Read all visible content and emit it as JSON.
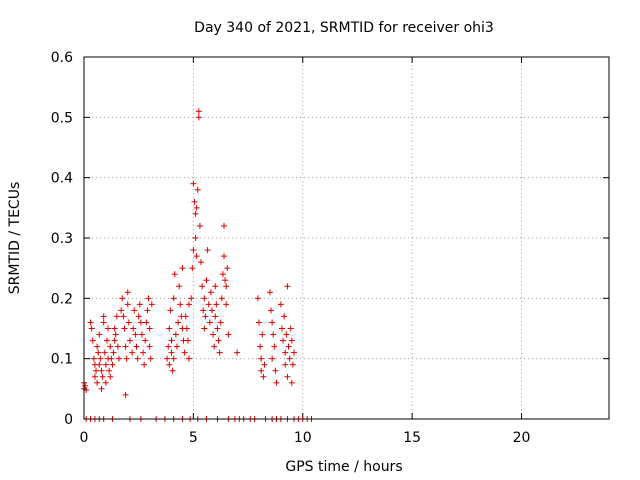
{
  "chart_data": {
    "type": "scatter",
    "title": "Day 340 of 2021, SRMTID for receiver ohi3",
    "xlabel": "GPS time / hours",
    "ylabel": "SRMTID / TECUs",
    "xlim": [
      0,
      24
    ],
    "ylim": [
      0,
      0.6
    ],
    "xticks": [
      0,
      5,
      10,
      15,
      20
    ],
    "yticks": [
      0,
      0.1,
      0.2,
      0.3,
      0.4,
      0.5,
      0.6
    ],
    "xtick_labels": [
      "0",
      "5",
      "10",
      "15",
      "20"
    ],
    "ytick_labels": [
      "0",
      "0.1",
      "0.2",
      "0.3",
      "0.4",
      "0.5",
      "0.6"
    ],
    "grid": true,
    "marker": "+",
    "series": [
      {
        "name": "SRMTID",
        "color": "#dd0000",
        "points": [
          [
            0.0,
            0.05
          ],
          [
            0.0,
            0.06
          ],
          [
            0.05,
            0.055
          ],
          [
            0.1,
            0.048
          ],
          [
            0.3,
            0.16
          ],
          [
            0.35,
            0.15
          ],
          [
            0.4,
            0.13
          ],
          [
            0.45,
            0.1
          ],
          [
            0.5,
            0.09
          ],
          [
            0.5,
            0.07
          ],
          [
            0.55,
            0.08
          ],
          [
            0.6,
            0.06
          ],
          [
            0.6,
            0.12
          ],
          [
            0.65,
            0.11
          ],
          [
            0.7,
            0.09
          ],
          [
            0.7,
            0.14
          ],
          [
            0.75,
            0.1
          ],
          [
            0.8,
            0.08
          ],
          [
            0.8,
            0.05
          ],
          [
            0.85,
            0.07
          ],
          [
            0.9,
            0.16
          ],
          [
            0.9,
            0.17
          ],
          [
            0.95,
            0.11
          ],
          [
            1.0,
            0.09
          ],
          [
            1.0,
            0.06
          ],
          [
            1.05,
            0.13
          ],
          [
            1.1,
            0.15
          ],
          [
            1.1,
            0.1
          ],
          [
            1.15,
            0.08
          ],
          [
            1.2,
            0.07
          ],
          [
            1.2,
            0.12
          ],
          [
            1.25,
            0.1
          ],
          [
            1.3,
            0.09
          ],
          [
            1.35,
            0.11
          ],
          [
            1.4,
            0.13
          ],
          [
            1.4,
            0.15
          ],
          [
            1.45,
            0.14
          ],
          [
            1.5,
            0.17
          ],
          [
            1.55,
            0.12
          ],
          [
            1.6,
            0.1
          ],
          [
            1.7,
            0.18
          ],
          [
            1.75,
            0.2
          ],
          [
            1.8,
            0.17
          ],
          [
            1.85,
            0.15
          ],
          [
            1.9,
            0.12
          ],
          [
            1.9,
            0.04
          ],
          [
            1.95,
            0.1
          ],
          [
            2.0,
            0.19
          ],
          [
            2.0,
            0.21
          ],
          [
            2.05,
            0.16
          ],
          [
            2.1,
            0.13
          ],
          [
            2.2,
            0.11
          ],
          [
            2.25,
            0.15
          ],
          [
            2.3,
            0.18
          ],
          [
            2.35,
            0.14
          ],
          [
            2.4,
            0.12
          ],
          [
            2.45,
            0.1
          ],
          [
            2.5,
            0.17
          ],
          [
            2.55,
            0.19
          ],
          [
            2.6,
            0.16
          ],
          [
            2.65,
            0.14
          ],
          [
            2.7,
            0.11
          ],
          [
            2.75,
            0.09
          ],
          [
            2.8,
            0.13
          ],
          [
            2.85,
            0.16
          ],
          [
            2.9,
            0.18
          ],
          [
            2.95,
            0.2
          ],
          [
            3.0,
            0.15
          ],
          [
            3.0,
            0.12
          ],
          [
            3.05,
            0.1
          ],
          [
            3.1,
            0.19
          ],
          [
            3.8,
            0.1
          ],
          [
            3.85,
            0.12
          ],
          [
            3.9,
            0.09
          ],
          [
            3.9,
            0.15
          ],
          [
            3.95,
            0.18
          ],
          [
            4.0,
            0.11
          ],
          [
            4.0,
            0.13
          ],
          [
            4.05,
            0.08
          ],
          [
            4.1,
            0.1
          ],
          [
            4.1,
            0.2
          ],
          [
            4.15,
            0.24
          ],
          [
            4.2,
            0.14
          ],
          [
            4.25,
            0.12
          ],
          [
            4.3,
            0.16
          ],
          [
            4.35,
            0.22
          ],
          [
            4.4,
            0.19
          ],
          [
            4.45,
            0.17
          ],
          [
            4.5,
            0.15
          ],
          [
            4.5,
            0.25
          ],
          [
            4.55,
            0.13
          ],
          [
            4.6,
            0.11
          ],
          [
            4.65,
            0.17
          ],
          [
            4.7,
            0.15
          ],
          [
            4.75,
            0.13
          ],
          [
            4.8,
            0.1
          ],
          [
            4.8,
            0.19
          ],
          [
            4.9,
            0.2
          ],
          [
            4.95,
            0.25
          ],
          [
            5.0,
            0.28
          ],
          [
            5.0,
            0.39
          ],
          [
            5.05,
            0.36
          ],
          [
            5.1,
            0.34
          ],
          [
            5.1,
            0.3
          ],
          [
            5.15,
            0.27
          ],
          [
            5.15,
            0.35
          ],
          [
            5.2,
            0.38
          ],
          [
            5.25,
            0.5
          ],
          [
            5.25,
            0.51
          ],
          [
            5.3,
            0.32
          ],
          [
            5.35,
            0.26
          ],
          [
            5.4,
            0.22
          ],
          [
            5.45,
            0.18
          ],
          [
            5.5,
            0.2
          ],
          [
            5.5,
            0.15
          ],
          [
            5.55,
            0.17
          ],
          [
            5.6,
            0.23
          ],
          [
            5.65,
            0.28
          ],
          [
            5.7,
            0.19
          ],
          [
            5.75,
            0.16
          ],
          [
            5.8,
            0.21
          ],
          [
            5.85,
            0.18
          ],
          [
            5.9,
            0.14
          ],
          [
            5.95,
            0.12
          ],
          [
            6.0,
            0.22
          ],
          [
            6.0,
            0.17
          ],
          [
            6.05,
            0.19
          ],
          [
            6.1,
            0.15
          ],
          [
            6.15,
            0.13
          ],
          [
            6.2,
            0.11
          ],
          [
            6.25,
            0.16
          ],
          [
            6.3,
            0.2
          ],
          [
            6.35,
            0.24
          ],
          [
            6.4,
            0.32
          ],
          [
            6.4,
            0.27
          ],
          [
            6.45,
            0.23
          ],
          [
            6.5,
            0.19
          ],
          [
            6.5,
            0.22
          ],
          [
            6.55,
            0.25
          ],
          [
            6.6,
            0.14
          ],
          [
            7.0,
            0.11
          ],
          [
            7.95,
            0.2
          ],
          [
            8.0,
            0.16
          ],
          [
            8.05,
            0.12
          ],
          [
            8.1,
            0.1
          ],
          [
            8.1,
            0.08
          ],
          [
            8.15,
            0.14
          ],
          [
            8.2,
            0.07
          ],
          [
            8.25,
            0.09
          ],
          [
            8.5,
            0.21
          ],
          [
            8.55,
            0.18
          ],
          [
            8.6,
            0.16
          ],
          [
            8.6,
            0.1
          ],
          [
            8.65,
            0.14
          ],
          [
            8.7,
            0.12
          ],
          [
            8.75,
            0.08
          ],
          [
            8.8,
            0.06
          ],
          [
            9.0,
            0.19
          ],
          [
            9.05,
            0.15
          ],
          [
            9.1,
            0.13
          ],
          [
            9.15,
            0.17
          ],
          [
            9.2,
            0.11
          ],
          [
            9.2,
            0.09
          ],
          [
            9.25,
            0.14
          ],
          [
            9.3,
            0.22
          ],
          [
            9.3,
            0.07
          ],
          [
            9.35,
            0.12
          ],
          [
            9.4,
            0.1
          ],
          [
            9.45,
            0.15
          ],
          [
            9.5,
            0.13
          ],
          [
            9.5,
            0.06
          ],
          [
            9.55,
            0.09
          ],
          [
            9.6,
            0.11
          ],
          [
            0.1,
            0.0
          ],
          [
            0.3,
            0.0
          ],
          [
            0.5,
            0.0
          ],
          [
            0.7,
            0.0
          ],
          [
            0.9,
            0.0
          ],
          [
            1.3,
            0.0
          ],
          [
            2.1,
            0.0
          ],
          [
            2.6,
            0.0
          ],
          [
            3.3,
            0.0
          ],
          [
            3.7,
            0.0
          ],
          [
            4.1,
            0.0
          ],
          [
            4.5,
            0.0
          ],
          [
            4.85,
            0.0
          ],
          [
            5.2,
            0.0
          ],
          [
            5.6,
            0.0
          ],
          [
            6.1,
            0.0
          ],
          [
            6.6,
            0.0
          ],
          [
            6.9,
            0.0
          ],
          [
            7.1,
            0.0
          ],
          [
            7.3,
            0.0
          ],
          [
            7.6,
            0.0
          ],
          [
            7.8,
            0.0
          ],
          [
            8.3,
            0.0
          ],
          [
            8.6,
            0.0
          ],
          [
            8.8,
            0.0
          ],
          [
            9.0,
            0.0
          ],
          [
            9.3,
            0.0
          ],
          [
            9.6,
            0.0
          ],
          [
            9.8,
            0.0
          ],
          [
            10.0,
            0.0
          ],
          [
            10.2,
            0.0
          ],
          [
            10.4,
            0.0
          ]
        ]
      }
    ]
  }
}
